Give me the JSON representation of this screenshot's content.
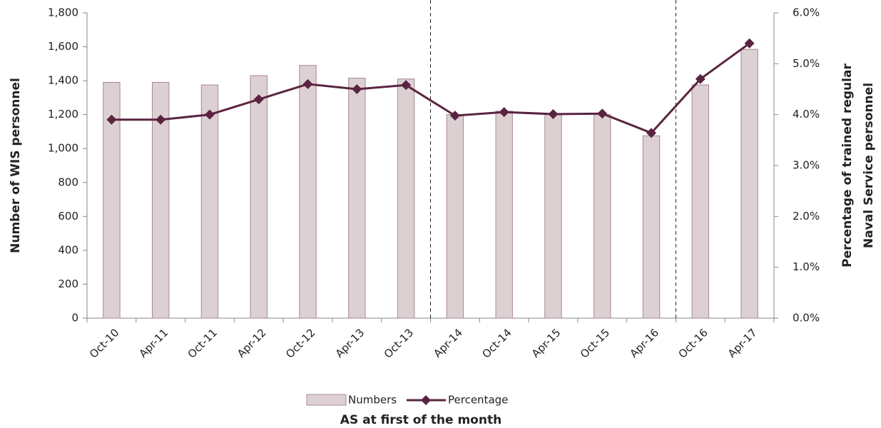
{
  "chart_data": {
    "type": "bar-line",
    "categories": [
      "Oct-10",
      "Apr-11",
      "Oct-11",
      "Apr-12",
      "Oct-12",
      "Apr-13",
      "Oct-13",
      "Apr-14",
      "Oct-14",
      "Apr-15",
      "Oct-15",
      "Apr-16",
      "Oct-16",
      "Apr-17"
    ],
    "series": [
      {
        "name": "Numbers",
        "type": "bar",
        "color": "#ddd0d2",
        "values": [
          1390,
          1390,
          1375,
          1430,
          1490,
          1415,
          1410,
          1200,
          1220,
          1200,
          1200,
          1075,
          1375,
          1585
        ]
      },
      {
        "name": "Percentage",
        "type": "line",
        "axis": "y2",
        "color": "#5a2440",
        "values": [
          3.9,
          3.9,
          4.0,
          4.3,
          4.6,
          4.5,
          4.58,
          3.98,
          4.05,
          4.01,
          4.02,
          3.64,
          4.7,
          5.4
        ]
      }
    ],
    "ylabel": "Number of WIS personnel",
    "y2label": [
      "Percentage of trained regular",
      "Naval Service personnel"
    ],
    "xlabel": "AS at first of the month",
    "ylim": [
      0,
      1800
    ],
    "yticks": [
      0,
      200,
      400,
      600,
      800,
      {
        "value": 1000,
        "label": "1,000"
      },
      {
        "value": 1200,
        "label": "1,200"
      },
      {
        "value": 1400,
        "label": "1,400"
      },
      {
        "value": 1600,
        "label": "1,600"
      },
      {
        "value": 1800,
        "label": "1,800"
      }
    ],
    "y2lim": [
      0,
      6
    ],
    "y2ticks": [
      {
        "value": 0,
        "label": "0.0%"
      },
      {
        "value": 1,
        "label": "1.0%"
      },
      {
        "value": 2,
        "label": "2.0%"
      },
      {
        "value": 3,
        "label": "3.0%"
      },
      {
        "value": 4,
        "label": "4.0%"
      },
      {
        "value": 5,
        "label": "5.0%"
      },
      {
        "value": 6,
        "label": "6.0%"
      }
    ],
    "grid": false,
    "legend": "bottom"
  }
}
